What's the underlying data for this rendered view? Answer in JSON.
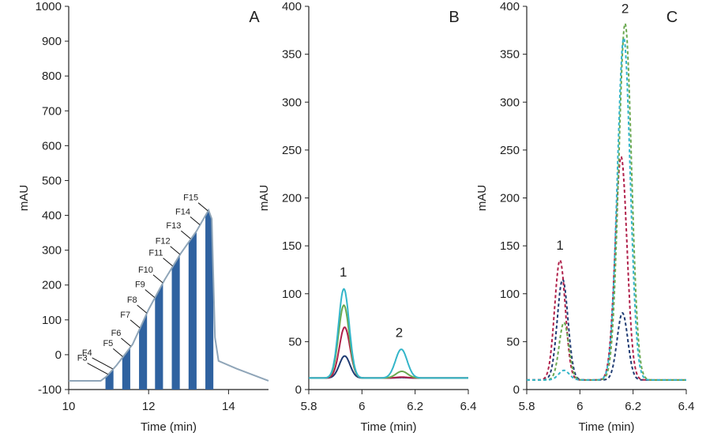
{
  "chart_data": [
    {
      "type": "area",
      "panel_label": "A",
      "xlabel": "Time (min)",
      "ylabel": "mAU",
      "xlim": [
        10,
        15
      ],
      "ylim": [
        -100,
        1000
      ],
      "xticks": [
        10,
        12,
        14
      ],
      "yticks": [
        -100,
        0,
        100,
        200,
        300,
        400,
        500,
        600,
        700,
        800,
        900,
        1000
      ],
      "line_color": "#8fa5b8",
      "bar_color": "#2f62a0",
      "curve": [
        [
          10,
          -75
        ],
        [
          10.8,
          -75
        ],
        [
          10.95,
          -62
        ],
        [
          11.2,
          -30
        ],
        [
          11.6,
          30
        ],
        [
          12,
          130
        ],
        [
          12.4,
          215
        ],
        [
          12.8,
          290
        ],
        [
          13.2,
          355
        ],
        [
          13.5,
          415
        ],
        [
          13.58,
          390
        ],
        [
          13.66,
          50
        ],
        [
          13.75,
          -18
        ],
        [
          14.2,
          -40
        ],
        [
          15,
          -75
        ]
      ],
      "fractions": [
        {
          "label": "F3",
          "x": 10.98
        },
        {
          "label": "F4",
          "x": 11.1
        },
        {
          "label": "F5",
          "x": 11.35
        },
        {
          "label": "F6",
          "x": 11.55
        },
        {
          "label": "F7",
          "x": 11.78
        },
        {
          "label": "F8",
          "x": 11.95
        },
        {
          "label": "F9",
          "x": 12.15
        },
        {
          "label": "F10",
          "x": 12.35
        },
        {
          "label": "F11",
          "x": 12.6
        },
        {
          "label": "F12",
          "x": 12.78
        },
        {
          "label": "F13",
          "x": 13.05
        },
        {
          "label": "F14",
          "x": 13.28
        },
        {
          "label": "F15",
          "x": 13.48
        }
      ],
      "bars": [
        {
          "from": 10.92,
          "to": 11.12
        },
        {
          "from": 11.34,
          "to": 11.54
        },
        {
          "from": 11.76,
          "to": 11.96
        },
        {
          "from": 12.16,
          "to": 12.36
        },
        {
          "from": 12.58,
          "to": 12.78
        },
        {
          "from": 13.0,
          "to": 13.2
        },
        {
          "from": 13.42,
          "to": 13.62
        }
      ]
    },
    {
      "type": "line",
      "panel_label": "B",
      "xlabel": "Time (min)",
      "ylabel": "mAU",
      "xlim": [
        5.8,
        6.4
      ],
      "ylim": [
        0,
        400
      ],
      "xticks": [
        5.8,
        6,
        6.2,
        6.4
      ],
      "xtick_labels": [
        "5.8",
        "6",
        "6.2",
        "6.4"
      ],
      "yticks": [
        0,
        50,
        100,
        150,
        200,
        250,
        300,
        350,
        400
      ],
      "baseline": 12,
      "line_style": "solid",
      "peak_labels": [
        {
          "text": "1",
          "x": 5.93,
          "y": 118
        },
        {
          "text": "2",
          "x": 6.14,
          "y": 55
        }
      ],
      "series": [
        {
          "color": "#1f3b73",
          "peaks": [
            [
              5.935,
              35,
              0.02
            ],
            [
              6.15,
              12.5,
              0.022
            ]
          ]
        },
        {
          "color": "#b0204a",
          "peaks": [
            [
              5.935,
              65,
              0.02
            ],
            [
              6.15,
              13,
              0.022
            ]
          ]
        },
        {
          "color": "#6aa84f",
          "peaks": [
            [
              5.932,
              88,
              0.02
            ],
            [
              6.15,
              19,
              0.022
            ]
          ]
        },
        {
          "color": "#33b5c9",
          "peaks": [
            [
              5.932,
              105,
              0.02
            ],
            [
              6.148,
              42,
              0.022
            ]
          ]
        }
      ]
    },
    {
      "type": "line",
      "panel_label": "C",
      "xlabel": "Time (min)",
      "ylabel": "mAU",
      "xlim": [
        5.8,
        6.4
      ],
      "ylim": [
        0,
        400
      ],
      "xticks": [
        5.8,
        6,
        6.2,
        6.4
      ],
      "xtick_labels": [
        "5.8",
        "6",
        "6.2",
        "6.4"
      ],
      "yticks": [
        0,
        50,
        100,
        150,
        200,
        250,
        300,
        350,
        400
      ],
      "baseline": 10,
      "line_style": "dashed",
      "peak_labels": [
        {
          "text": "1",
          "x": 5.925,
          "y": 146
        },
        {
          "text": "2",
          "x": 6.17,
          "y": 393
        }
      ],
      "series": [
        {
          "color": "#1f3b73",
          "peaks": [
            [
              5.935,
              115,
              0.02
            ],
            [
              6.16,
              80,
              0.02
            ]
          ]
        },
        {
          "color": "#b0204a",
          "peaks": [
            [
              5.925,
              135,
              0.02
            ],
            [
              6.155,
              243,
              0.022
            ]
          ]
        },
        {
          "color": "#6aa84f",
          "peaks": [
            [
              5.94,
              70,
              0.018
            ],
            [
              6.17,
              382,
              0.024
            ]
          ]
        },
        {
          "color": "#33b5c9",
          "peaks": [
            [
              5.94,
              20,
              0.02
            ],
            [
              6.165,
              367,
              0.024
            ]
          ]
        }
      ]
    }
  ]
}
